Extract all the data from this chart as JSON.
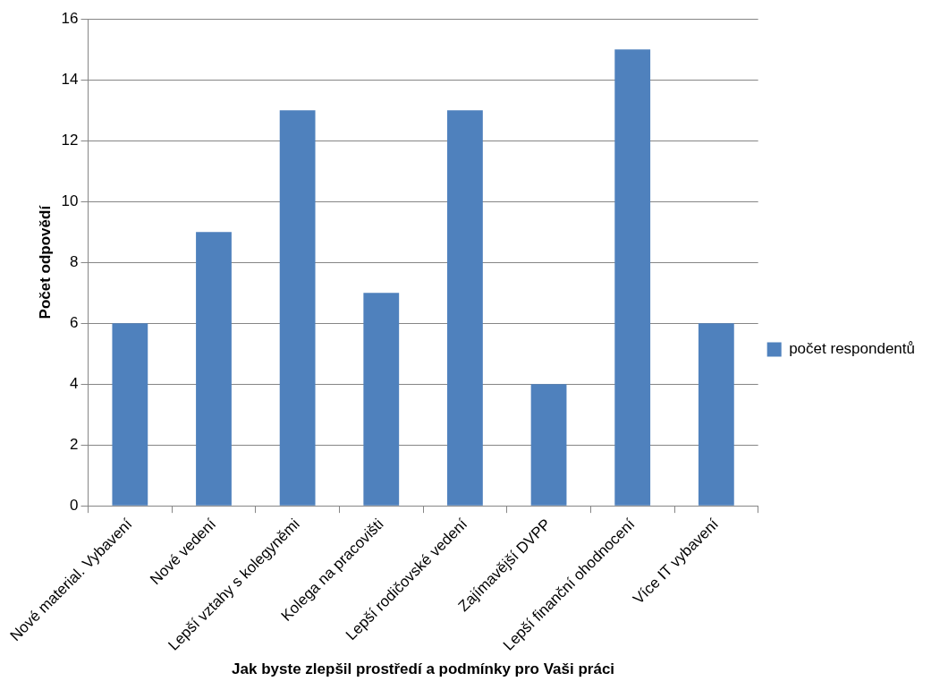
{
  "chart_data": {
    "type": "bar",
    "xlabel": "Jak byste zlepšil prostředí a podmínky pro Vaši práci",
    "ylabel": "Počet odpovědí",
    "categories": [
      "Nové material. Vybavení",
      "Nové vedení",
      "Lepší vztahy s kolegyněmi",
      "Kolega na pracovišti",
      "Lepší rodičovské vedení",
      "Zajímavější DVPP",
      "Lepší finanční ohodnocení",
      "Více IT vybavení"
    ],
    "series": [
      {
        "name": "počet respondentů",
        "color": "#4f81bd",
        "values": [
          6,
          9,
          13,
          7,
          13,
          4,
          15,
          6
        ]
      }
    ],
    "ylim": [
      0,
      16
    ],
    "yticks": [
      0,
      2,
      4,
      6,
      8,
      10,
      12,
      14,
      16
    ],
    "grid": "y",
    "legend": "right"
  }
}
